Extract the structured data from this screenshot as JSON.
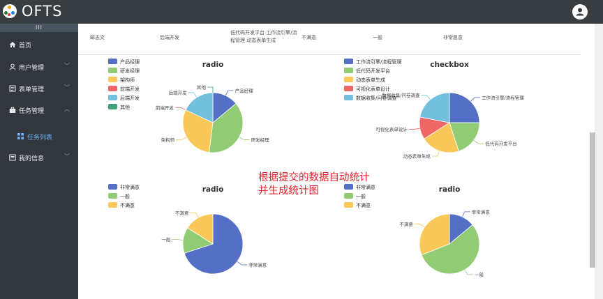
{
  "app": {
    "title": "OFTS"
  },
  "sidebar": {
    "collapse_label": "III",
    "items": [
      {
        "label": "首页",
        "icon": "home-icon"
      },
      {
        "label": "用户管理",
        "icon": "user-icon"
      },
      {
        "label": "表单管理",
        "icon": "form-icon"
      },
      {
        "label": "任务管理",
        "icon": "briefcase-icon"
      },
      {
        "label": "任务列表",
        "icon": "grid-icon"
      },
      {
        "label": "我的信息",
        "icon": "info-icon"
      }
    ]
  },
  "table_row": {
    "cells": [
      "邮志文",
      "后端开发",
      "低代码开发平台 工作流引擎/流程管理 动态表单生成",
      "不满意",
      "一般",
      "非常愿意"
    ]
  },
  "annotation": {
    "line1": "根据提交的数据自动统计",
    "line2": "并生成统计图"
  },
  "colors": {
    "blue": "#5470c6",
    "green": "#91cc75",
    "yellow": "#fac858",
    "red": "#ee6666",
    "cyan": "#73c0de",
    "teal": "#3ba272",
    "annotation": "#e6212a",
    "sidebar": "#32373d",
    "header": "#373d41"
  },
  "chart_data": [
    {
      "type": "pie",
      "title": "radio",
      "categories": [
        "产品经理",
        "研发经理",
        "架构师",
        "前端开发",
        "后端开发",
        "其他"
      ],
      "values": [
        14,
        38,
        30,
        0,
        18,
        0
      ],
      "legend_position": "left"
    },
    {
      "type": "pie",
      "title": "checkbox",
      "categories": [
        "工作流引擎/流程管理",
        "低代码开发平台",
        "动态表单生成",
        "可视化表单设计",
        "数据收集/问卷调查"
      ],
      "values": [
        25,
        20,
        21,
        12,
        22
      ],
      "legend_position": "left"
    },
    {
      "type": "pie",
      "title": "radio",
      "categories": [
        "非常满意",
        "一般",
        "不满意"
      ],
      "values": [
        70,
        14,
        16
      ],
      "legend_position": "left"
    },
    {
      "type": "pie",
      "title": "radio",
      "categories": [
        "非常满意",
        "一般",
        "不满意"
      ],
      "values": [
        14,
        55,
        31
      ],
      "legend_position": "left"
    }
  ]
}
